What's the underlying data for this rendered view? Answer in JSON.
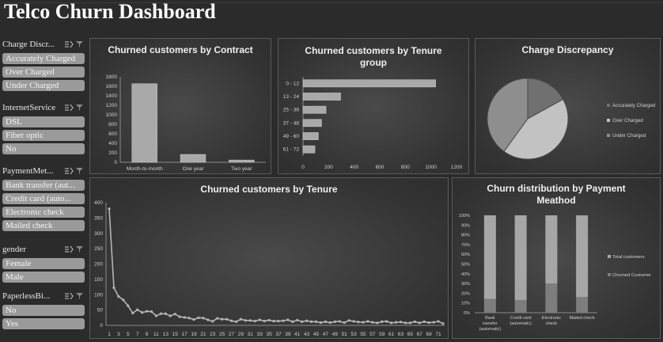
{
  "dashboard": {
    "title": "Telco Churn Dashboard"
  },
  "slicers": [
    {
      "title": "Charge Discr...",
      "items": [
        "Accurately Charged",
        "Over Charged",
        "Under Charged"
      ]
    },
    {
      "title": "InternetService",
      "items": [
        "DSL",
        "Fiber optic",
        "No"
      ]
    },
    {
      "title": "PaymentMet...",
      "items": [
        "Bank transfer (aut...",
        "Credit card (auto...",
        "Electronic check",
        "Mailed check"
      ]
    },
    {
      "title": "gender",
      "items": [
        "Female",
        "Male"
      ]
    },
    {
      "title": "PaperlessBi...",
      "items": [
        "No",
        "Yes"
      ]
    }
  ],
  "colors": {
    "bar_fill": "#a9a9a9",
    "line": "#b5b5b5",
    "pie": [
      "#707070",
      "#c2c2c2",
      "#8e8e8e"
    ],
    "stack_total": "#a6a6a6",
    "stack_churned": "#7d7d7d"
  },
  "chart_data": [
    {
      "id": "contract",
      "type": "bar",
      "title": "Churned customers by Contract",
      "categories": [
        "Month-to-month",
        "One year",
        "Two year"
      ],
      "values": [
        1655,
        166,
        48
      ],
      "ylim": [
        0,
        1800
      ],
      "yticks": [
        0,
        200,
        400,
        600,
        800,
        1000,
        1200,
        1400,
        1600,
        1800
      ],
      "grid": false
    },
    {
      "id": "tenure_group",
      "type": "bar",
      "orientation": "horizontal",
      "title": "Churned customers by Tenure group",
      "categories": [
        "0 - 12",
        "13 - 24",
        "25 - 36",
        "37 - 48",
        "49 - 60",
        "61 - 72"
      ],
      "values": [
        1037,
        294,
        180,
        145,
        120,
        93
      ],
      "xlim": [
        0,
        1200
      ],
      "xticks": [
        0,
        200,
        400,
        600,
        800,
        1000,
        1200
      ],
      "grid": false
    },
    {
      "id": "charge_discrepancy",
      "type": "pie",
      "title": "Charge Discrepancy",
      "labels": [
        "Accurately Charged",
        "Over Charged",
        "Under Charged"
      ],
      "values": [
        17,
        43,
        40
      ],
      "legend": "right"
    },
    {
      "id": "tenure",
      "type": "line",
      "title": "Churned customers by Tenure",
      "x": [
        1,
        2,
        3,
        4,
        5,
        6,
        7,
        8,
        9,
        10,
        11,
        12,
        13,
        14,
        15,
        16,
        17,
        18,
        19,
        20,
        21,
        22,
        23,
        24,
        25,
        26,
        27,
        28,
        29,
        30,
        31,
        32,
        33,
        34,
        35,
        36,
        37,
        38,
        39,
        40,
        41,
        42,
        43,
        44,
        45,
        46,
        47,
        48,
        49,
        50,
        51,
        52,
        53,
        54,
        55,
        56,
        57,
        58,
        59,
        60,
        61,
        62,
        63,
        64,
        65,
        66,
        67,
        68,
        69,
        70,
        71,
        72
      ],
      "values": [
        380,
        123,
        94,
        83,
        64,
        40,
        51,
        42,
        46,
        45,
        31,
        38,
        38,
        31,
        37,
        28,
        26,
        24,
        19,
        25,
        24,
        18,
        13,
        23,
        20,
        20,
        15,
        12,
        20,
        16,
        16,
        14,
        18,
        14,
        17,
        14,
        14,
        15,
        18,
        12,
        17,
        12,
        15,
        12,
        12,
        9,
        12,
        9,
        12,
        13,
        9,
        16,
        13,
        11,
        10,
        13,
        10,
        8,
        12,
        13,
        8,
        10,
        11,
        8,
        8,
        12,
        8,
        12,
        9,
        10,
        13,
        6
      ],
      "xticks": [
        1,
        3,
        5,
        7,
        9,
        11,
        13,
        15,
        17,
        19,
        21,
        23,
        25,
        27,
        29,
        31,
        33,
        35,
        37,
        39,
        41,
        43,
        45,
        47,
        49,
        51,
        53,
        55,
        57,
        59,
        61,
        63,
        65,
        67,
        69,
        71
      ],
      "ylim": [
        0,
        400
      ],
      "yticks": [
        0,
        50,
        100,
        150,
        200,
        250,
        300,
        350,
        400
      ],
      "grid": false
    },
    {
      "id": "payment",
      "type": "bar",
      "stacked": "percent",
      "title": "Churn distribution by Payment Meathod",
      "categories": [
        "Bank transfer (automatic)",
        "Credit card (automatic)",
        "Electronic check",
        "Mailed check"
      ],
      "category_lines": [
        [
          "Bank",
          "transfer",
          "(automatic)"
        ],
        [
          "Credit card",
          "(automatic)"
        ],
        [
          "Electronic",
          "check"
        ],
        [
          "Mailed check"
        ]
      ],
      "series": [
        {
          "name": "Total customers",
          "values": [
            86,
            87,
            70,
            84
          ]
        },
        {
          "name": "Churned Customer",
          "values": [
            14,
            13,
            30,
            16
          ]
        }
      ],
      "ylim": [
        0,
        100
      ],
      "yticks": [
        "0%",
        "10%",
        "20%",
        "30%",
        "40%",
        "50%",
        "60%",
        "70%",
        "80%",
        "90%",
        "100%"
      ],
      "legend": "right"
    }
  ]
}
